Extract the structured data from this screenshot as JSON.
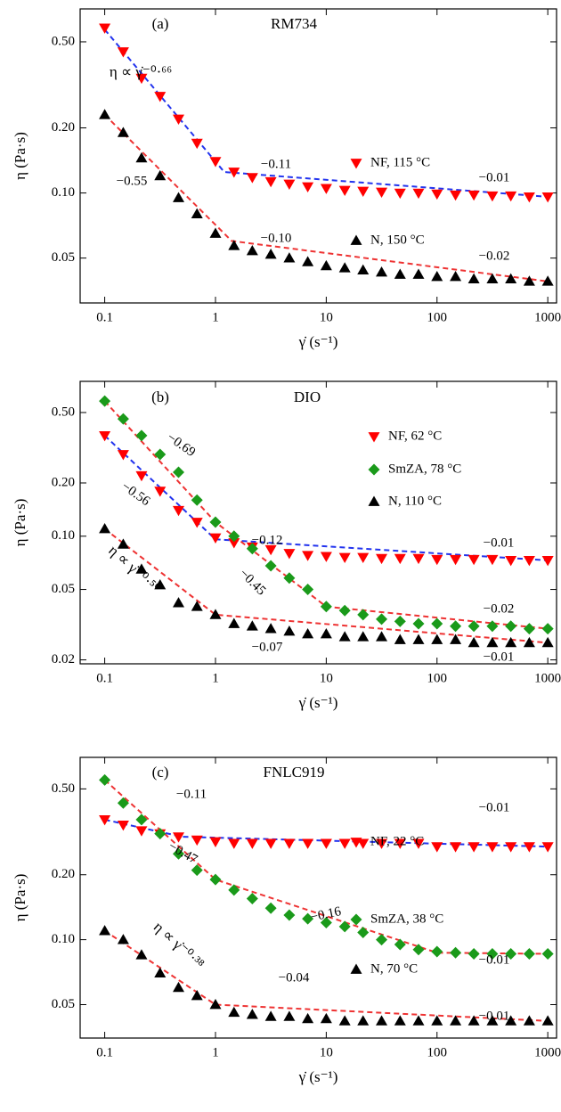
{
  "chart_data": [
    {
      "type": "scatter",
      "log_x": true,
      "log_y": true,
      "panel_label": "(a)",
      "title": "RM734",
      "xlabel": "γ̇ (s⁻¹)",
      "ylabel": "η (Pa·s)",
      "x": [
        0.1,
        0.147,
        0.215,
        0.316,
        0.464,
        0.681,
        1,
        1.47,
        2.15,
        3.16,
        4.64,
        6.81,
        10,
        14.7,
        21.5,
        31.6,
        46.4,
        68.1,
        100,
        147,
        215,
        316,
        464,
        681,
        1000
      ],
      "xlim": [
        0.06,
        1200
      ],
      "xticks": [
        0.1,
        1,
        10,
        100,
        1000
      ],
      "ylim": [
        0.031,
        0.71
      ],
      "yticks": [
        0.05,
        {
          "value": 0.1,
          "label": "0.10"
        },
        {
          "value": 0.2,
          "label": "0.20"
        },
        {
          "value": 0.5,
          "label": "0.50"
        }
      ],
      "series": [
        {
          "name": "NF, 115 °C",
          "color": "#ff0000",
          "marker": "triangle-down",
          "values": [
            0.58,
            0.45,
            0.34,
            0.28,
            0.22,
            0.17,
            0.14,
            0.125,
            0.118,
            0.113,
            0.11,
            0.107,
            0.105,
            0.103,
            0.102,
            0.101,
            0.1,
            0.1,
            0.099,
            0.098,
            0.098,
            0.097,
            0.097,
            0.096,
            0.096
          ]
        },
        {
          "name": "N, 150 °C",
          "color": "#000000",
          "marker": "triangle-up",
          "values": [
            0.23,
            0.19,
            0.145,
            0.12,
            0.095,
            0.08,
            0.065,
            0.057,
            0.054,
            0.052,
            0.05,
            0.048,
            0.046,
            0.045,
            0.044,
            0.043,
            0.042,
            0.042,
            0.041,
            0.041,
            0.04,
            0.04,
            0.04,
            0.039,
            0.039
          ]
        }
      ],
      "fits": [
        {
          "color": "#2233ee",
          "x": [
            0.1,
            1.2,
            1000
          ],
          "values": [
            0.57,
            0.125,
            0.096
          ]
        },
        {
          "color": "#ee3333",
          "x": [
            0.1,
            1.4,
            1000
          ],
          "values": [
            0.23,
            0.06,
            0.039
          ]
        }
      ],
      "annotations": [
        "η ∝ γ̇⁻⁰·⁶⁶",
        "−0.11",
        "−0.55",
        "−0.10",
        "−0.01",
        "−0.02"
      ]
    },
    {
      "type": "scatter",
      "log_x": true,
      "log_y": true,
      "panel_label": "(b)",
      "title": "DIO",
      "xlabel": "γ̇ (s⁻¹)",
      "ylabel": "η (Pa·s)",
      "x": [
        0.1,
        0.147,
        0.215,
        0.316,
        0.464,
        0.681,
        1,
        1.47,
        2.15,
        3.16,
        4.64,
        6.81,
        10,
        14.7,
        21.5,
        31.6,
        46.4,
        68.1,
        100,
        147,
        215,
        316,
        464,
        681,
        1000
      ],
      "xlim": [
        0.06,
        1200
      ],
      "xticks": [
        0.1,
        1,
        10,
        100,
        1000
      ],
      "ylim": [
        0.019,
        0.75
      ],
      "yticks": [
        0.02,
        0.05,
        {
          "value": 0.1,
          "label": "0.10"
        },
        {
          "value": 0.2,
          "label": "0.20"
        },
        {
          "value": 0.5,
          "label": "0.50"
        }
      ],
      "series": [
        {
          "name": "NF, 62 °C",
          "color": "#ff0000",
          "marker": "triangle-down",
          "values": [
            0.37,
            0.29,
            0.22,
            0.18,
            0.14,
            0.12,
            0.098,
            0.092,
            0.087,
            0.084,
            0.08,
            0.078,
            0.077,
            0.076,
            0.076,
            0.075,
            0.075,
            0.075,
            0.074,
            0.074,
            0.074,
            0.074,
            0.073,
            0.073,
            0.073
          ]
        },
        {
          "name": "SmZA, 78 °C",
          "color": "#1a9a1a",
          "marker": "diamond",
          "values": [
            0.58,
            0.46,
            0.37,
            0.29,
            0.23,
            0.16,
            0.12,
            0.1,
            0.085,
            0.068,
            0.058,
            0.05,
            0.04,
            0.038,
            0.036,
            0.034,
            0.033,
            0.032,
            0.032,
            0.031,
            0.031,
            0.031,
            0.031,
            0.03,
            0.03
          ]
        },
        {
          "name": "N, 110 °C",
          "color": "#000000",
          "marker": "triangle-up",
          "values": [
            0.11,
            0.09,
            0.065,
            0.053,
            0.042,
            0.04,
            0.036,
            0.032,
            0.031,
            0.03,
            0.029,
            0.028,
            0.028,
            0.027,
            0.027,
            0.027,
            0.026,
            0.026,
            0.026,
            0.026,
            0.025,
            0.025,
            0.025,
            0.025,
            0.025
          ]
        }
      ],
      "fits": [
        {
          "color": "#2233ee",
          "x": [
            0.1,
            1,
            1000
          ],
          "values": [
            0.37,
            0.096,
            0.073
          ]
        },
        {
          "color": "#ee3333",
          "x": [
            0.1,
            1,
            10,
            1000
          ],
          "values": [
            0.58,
            0.12,
            0.04,
            0.03
          ]
        },
        {
          "color": "#ee3333",
          "x": [
            0.1,
            1,
            1000
          ],
          "values": [
            0.11,
            0.036,
            0.025
          ]
        }
      ],
      "annotations": [
        "−0.69",
        "−0.56",
        "η ∝ γ̇⁻⁰·⁵⁰",
        "−0.12",
        "−0.45",
        "−0.07",
        "−0.01",
        "−0.02",
        "−0.01"
      ]
    },
    {
      "type": "scatter",
      "log_x": true,
      "log_y": true,
      "panel_label": "(c)",
      "title": "FNLC919",
      "xlabel": "γ̇ (s⁻¹)",
      "ylabel": "η (Pa·s)",
      "x": [
        0.1,
        0.147,
        0.215,
        0.316,
        0.464,
        0.681,
        1,
        1.47,
        2.15,
        3.16,
        4.64,
        6.81,
        10,
        14.7,
        21.5,
        31.6,
        46.4,
        68.1,
        100,
        147,
        215,
        316,
        464,
        681,
        1000
      ],
      "xlim": [
        0.06,
        1200
      ],
      "xticks": [
        0.1,
        1,
        10,
        100,
        1000
      ],
      "ylim": [
        0.035,
        0.7
      ],
      "yticks": [
        0.05,
        {
          "value": 0.1,
          "label": "0.10"
        },
        {
          "value": 0.2,
          "label": "0.20"
        },
        {
          "value": 0.5,
          "label": "0.50"
        }
      ],
      "series": [
        {
          "name": "NF, 22 °C",
          "color": "#ff0000",
          "marker": "triangle-down",
          "values": [
            0.36,
            0.34,
            0.32,
            0.31,
            0.3,
            0.29,
            0.285,
            0.28,
            0.28,
            0.28,
            0.28,
            0.28,
            0.28,
            0.28,
            0.28,
            0.28,
            0.28,
            0.28,
            0.27,
            0.27,
            0.27,
            0.27,
            0.27,
            0.27,
            0.27
          ]
        },
        {
          "name": "SmZA, 38 °C",
          "color": "#1a9a1a",
          "marker": "diamond",
          "values": [
            0.55,
            0.43,
            0.36,
            0.31,
            0.25,
            0.21,
            0.19,
            0.17,
            0.155,
            0.14,
            0.13,
            0.125,
            0.12,
            0.115,
            0.108,
            0.1,
            0.095,
            0.09,
            0.088,
            0.087,
            0.086,
            0.086,
            0.086,
            0.086,
            0.086
          ]
        },
        {
          "name": "N, 70 °C",
          "color": "#000000",
          "marker": "triangle-up",
          "values": [
            0.11,
            0.1,
            0.085,
            0.07,
            0.06,
            0.055,
            0.05,
            0.046,
            0.045,
            0.044,
            0.044,
            0.043,
            0.043,
            0.042,
            0.042,
            0.042,
            0.042,
            0.042,
            0.042,
            0.042,
            0.042,
            0.042,
            0.042,
            0.042,
            0.042
          ]
        }
      ],
      "fits": [
        {
          "color": "#2233ee",
          "x": [
            0.1,
            0.5,
            1000
          ],
          "values": [
            0.36,
            0.3,
            0.27
          ]
        },
        {
          "color": "#ee3333",
          "x": [
            0.1,
            1,
            100,
            1000
          ],
          "values": [
            0.55,
            0.19,
            0.087,
            0.086
          ]
        },
        {
          "color": "#ee3333",
          "x": [
            0.1,
            1,
            1000
          ],
          "values": [
            0.11,
            0.05,
            0.042
          ]
        }
      ],
      "annotations": [
        "−0.11",
        "−0.47",
        "−0.16",
        "η ∝ γ̇⁻⁰·³⁸",
        "−0.04",
        "−0.01",
        "−0.01",
        "−0.01"
      ]
    }
  ]
}
